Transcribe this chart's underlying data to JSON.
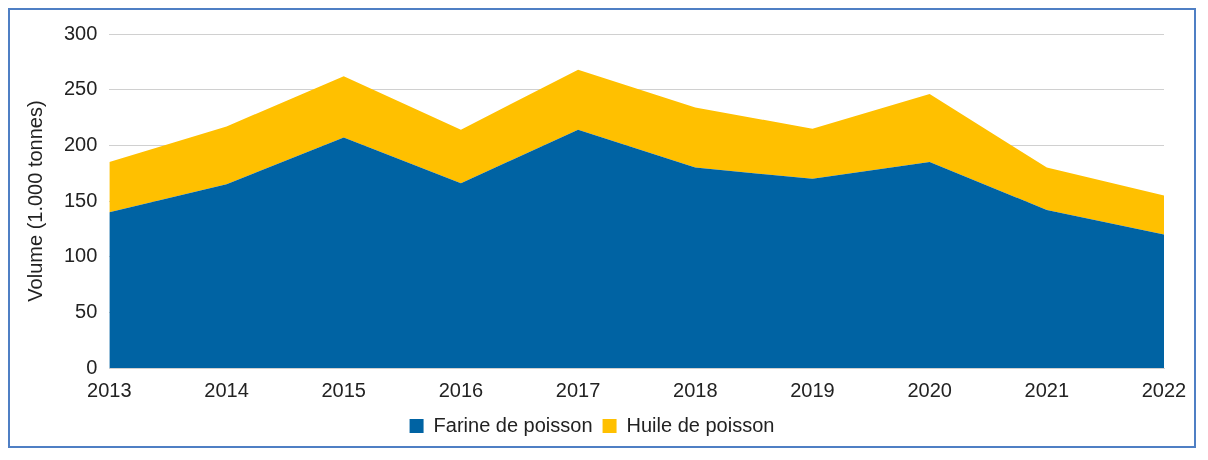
{
  "chart_data": {
    "type": "area",
    "stacked": true,
    "ylabel": "Volume (1.000 tonnes)",
    "categories": [
      "2013",
      "2014",
      "2015",
      "2016",
      "2017",
      "2018",
      "2019",
      "2020",
      "2021",
      "2022"
    ],
    "series": [
      {
        "name": "Farine de poisson",
        "color": "#0063a3",
        "values": [
          140,
          165,
          207,
          166,
          214,
          180,
          170,
          185,
          142,
          120
        ]
      },
      {
        "name": "Huile de poisson",
        "color": "#ffc000",
        "values": [
          45,
          52,
          55,
          48,
          54,
          54,
          45,
          61,
          38,
          35
        ]
      }
    ],
    "ylim": [
      0,
      300
    ],
    "yticks": [
      0,
      50,
      100,
      150,
      200,
      250,
      300
    ],
    "grid": "y",
    "legend": "bottom"
  }
}
